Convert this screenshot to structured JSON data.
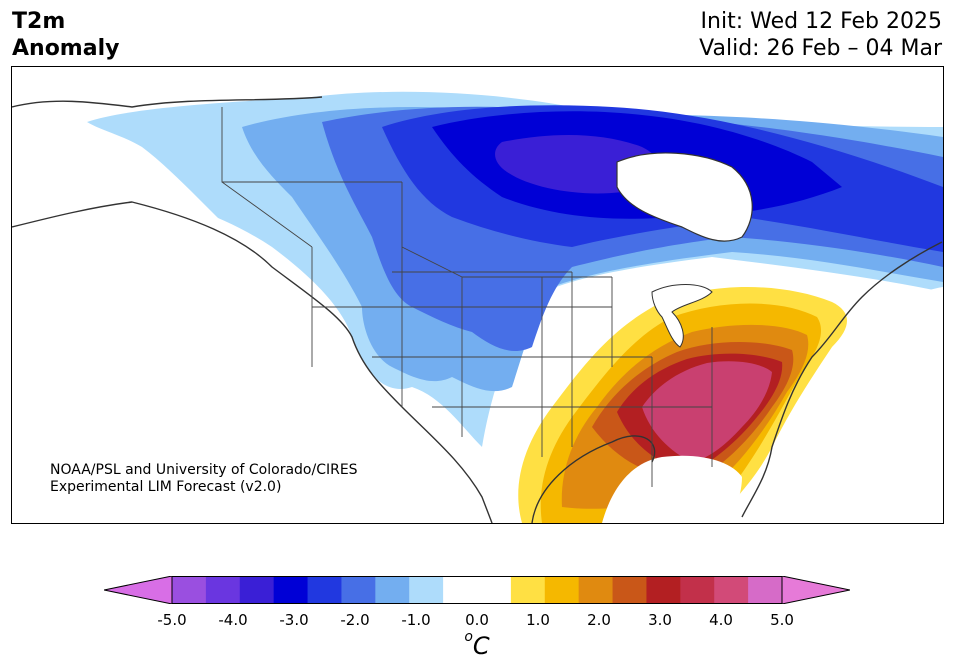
{
  "header": {
    "title_line1": "T2m",
    "title_line2": "Anomaly",
    "init": "Init: Wed 12 Feb 2025",
    "valid": "Valid: 26 Feb – 04 Mar"
  },
  "credit": {
    "line1": "NOAA/PSL and University of Colorado/CIRES",
    "line2": "Experimental LIM Forecast (v2.0)"
  },
  "colorbar": {
    "unit_base": "C",
    "unit_sup": "o",
    "ticks": [
      "-5.0",
      "-4.0",
      "-3.0",
      "-2.0",
      "-1.0",
      "0.0",
      "1.0",
      "2.0",
      "3.0",
      "4.0",
      "5.0"
    ],
    "colors": [
      "#9a4fe0",
      "#6a36e0",
      "#3a1fd6",
      "#0000d6",
      "#2138e0",
      "#476fe6",
      "#73aef0",
      "#aedcfb",
      "#ffffff",
      "#ffffff",
      "#ffe043",
      "#f5b800",
      "#e08a10",
      "#c95718",
      "#b31f22",
      "#c2304a",
      "#d24a78",
      "#d66bc8"
    ],
    "extend_low": "#d86ee6",
    "extend_high": "#e67ad8"
  },
  "map": {
    "region": "North America",
    "colors": {
      "ocean": "#ffffff",
      "land": "#ffffff",
      "cold1": "#aedcfb",
      "cold2": "#73aef0",
      "cold3": "#476fe6",
      "cold4": "#2138e0",
      "cold5": "#0000d6",
      "cold6": "#3a1fd6",
      "warm1": "#ffe043",
      "warm2": "#f5b800",
      "warm3": "#e08a10",
      "warm4": "#c95718",
      "warm5": "#b31f22",
      "warm6": "#c94070"
    }
  }
}
